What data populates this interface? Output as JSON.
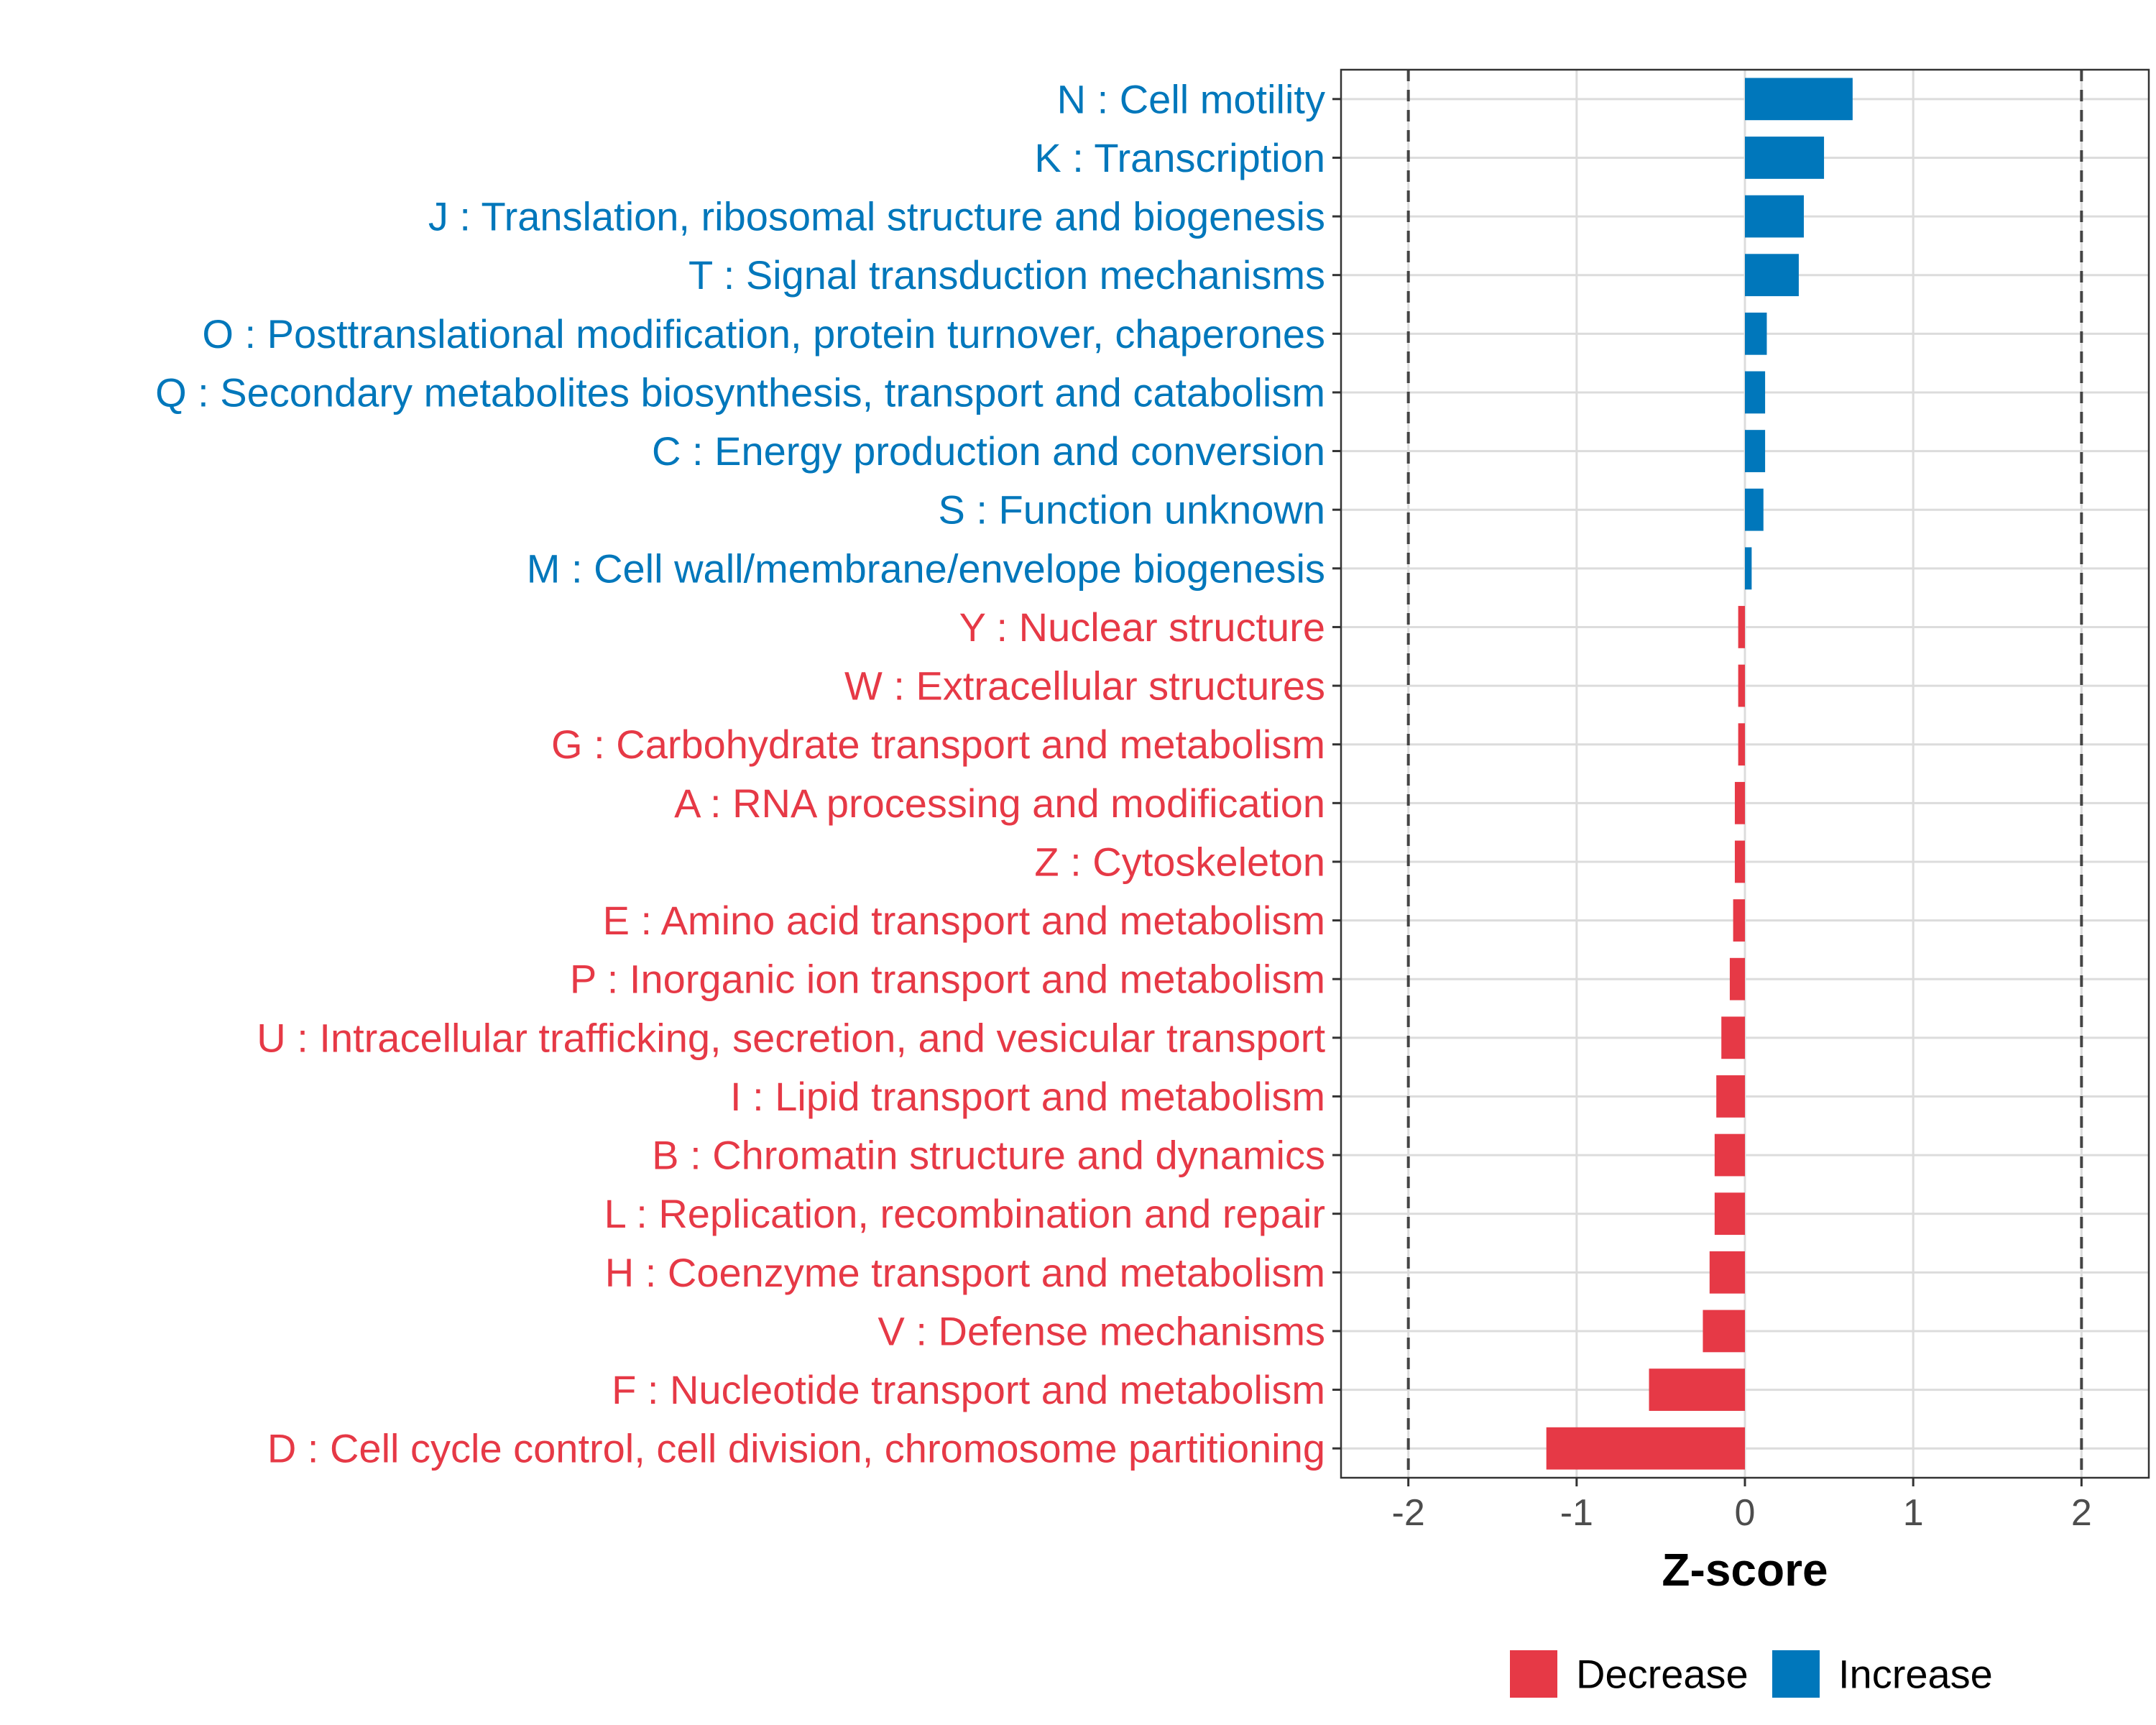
{
  "chart_data": {
    "type": "bar",
    "orientation": "horizontal",
    "xlabel": "Z-score",
    "ylabel": "",
    "xlim": [
      -2.4,
      2.4
    ],
    "xticks": [
      -2,
      -1,
      0,
      1,
      2
    ],
    "xtick_labels": [
      "-2",
      "-1",
      "0",
      "1",
      "2"
    ],
    "reference_lines": [
      -2,
      2
    ],
    "grid": true,
    "legend_position": "bottom",
    "colors": {
      "Decrease": "#e63946",
      "Increase": "#0077bb"
    },
    "legend": [
      {
        "label": "Decrease",
        "color": "#e63946"
      },
      {
        "label": "Increase",
        "color": "#0077bb"
      }
    ],
    "categories": [
      "N : Cell motility",
      "K : Transcription",
      "J : Translation, ribosomal structure and biogenesis",
      "T : Signal transduction mechanisms",
      "O : Posttranslational modification, protein turnover, chaperones",
      "Q : Secondary metabolites biosynthesis, transport and catabolism",
      "C : Energy production and conversion",
      "S : Function unknown",
      "M : Cell wall/membrane/envelope biogenesis",
      "Y : Nuclear structure",
      "W : Extracellular structures",
      "G : Carbohydrate transport and metabolism",
      "A : RNA processing and modification",
      "Z : Cytoskeleton",
      "E : Amino acid transport and metabolism",
      "P : Inorganic ion transport and metabolism",
      "U : Intracellular trafficking, secretion, and vesicular transport",
      "I : Lipid transport and metabolism",
      "B : Chromatin structure and dynamics",
      "L : Replication, recombination and repair",
      "H : Coenzyme transport and metabolism",
      "V : Defense mechanisms",
      "F : Nucleotide transport and metabolism",
      "D : Cell cycle control, cell division, chromosome partitioning"
    ],
    "values": [
      0.64,
      0.47,
      0.35,
      0.32,
      0.13,
      0.12,
      0.12,
      0.11,
      0.04,
      -0.04,
      -0.04,
      -0.04,
      -0.06,
      -0.06,
      -0.07,
      -0.09,
      -0.14,
      -0.17,
      -0.18,
      -0.18,
      -0.21,
      -0.25,
      -0.57,
      -1.18
    ],
    "groups": [
      "Increase",
      "Increase",
      "Increase",
      "Increase",
      "Increase",
      "Increase",
      "Increase",
      "Increase",
      "Increase",
      "Decrease",
      "Decrease",
      "Decrease",
      "Decrease",
      "Decrease",
      "Decrease",
      "Decrease",
      "Decrease",
      "Decrease",
      "Decrease",
      "Decrease",
      "Decrease",
      "Decrease",
      "Decrease",
      "Decrease"
    ]
  }
}
